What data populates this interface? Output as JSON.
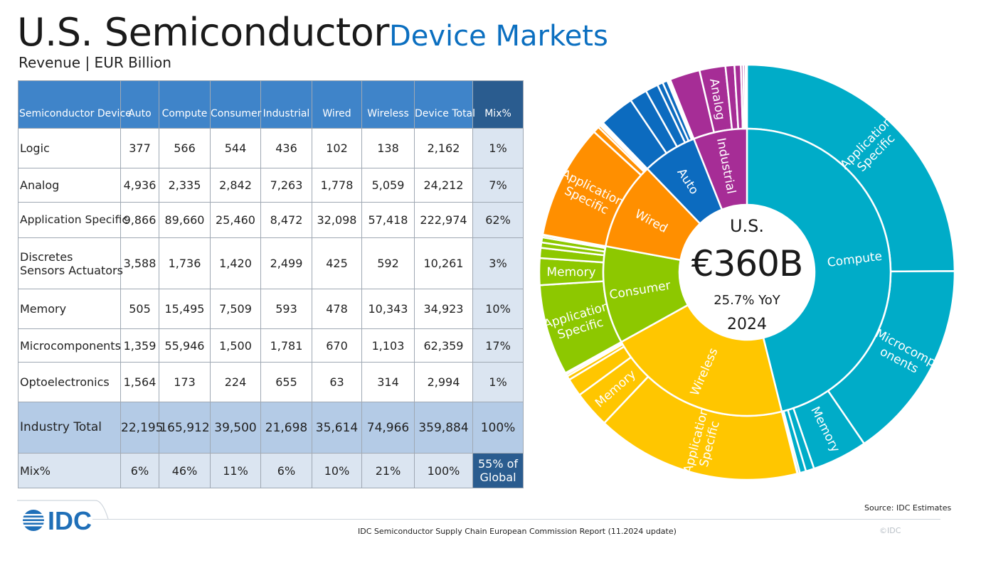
{
  "title_main": "U.S. Semiconductor",
  "title_accent": "Device Markets",
  "subtitle": "Revenue | EUR Billion",
  "table": {
    "headers": [
      "Semiconductor Device",
      "Auto",
      "Compute",
      "Consumer",
      "Industrial",
      "Wired",
      "Wireless",
      "Device Total",
      "Mix%"
    ],
    "rows": [
      {
        "label": "Logic",
        "values": [
          "377",
          "566",
          "544",
          "436",
          "102",
          "138",
          "2,162"
        ],
        "mix": "1%"
      },
      {
        "label": "Analog",
        "values": [
          "4,936",
          "2,335",
          "2,842",
          "7,263",
          "1,778",
          "5,059",
          "24,212"
        ],
        "mix": "7%"
      },
      {
        "label": "Application Specific",
        "values": [
          "9,866",
          "89,660",
          "25,460",
          "8,472",
          "32,098",
          "57,418",
          "222,974"
        ],
        "mix": "62%"
      },
      {
        "label": "Discretes Sensors Actuators",
        "label_l1": "Discretes",
        "label_l2": "Sensors Actuators",
        "values": [
          "3,588",
          "1,736",
          "1,420",
          "2,499",
          "425",
          "592",
          "10,261"
        ],
        "mix": "3%"
      },
      {
        "label": "Memory",
        "values": [
          "505",
          "15,495",
          "7,509",
          "593",
          "478",
          "10,343",
          "34,923"
        ],
        "mix": "10%"
      },
      {
        "label": "Microcomponents",
        "values": [
          "1,359",
          "55,946",
          "1,500",
          "1,781",
          "670",
          "1,103",
          "62,359"
        ],
        "mix": "17%"
      },
      {
        "label": "Optoelectronics",
        "values": [
          "1,564",
          "173",
          "224",
          "655",
          "63",
          "314",
          "2,994"
        ],
        "mix": "1%"
      }
    ],
    "total_row": {
      "label": "Industry Total",
      "values": [
        "22,195",
        "165,912",
        "39,500",
        "21,698",
        "35,614",
        "74,966",
        "359,884"
      ],
      "mix": "100%"
    },
    "mix_row": {
      "label": "Mix%",
      "values": [
        "6%",
        "46%",
        "11%",
        "6%",
        "10%",
        "21%",
        "100%"
      ],
      "global_l1": "55% of",
      "global_l2": "Global"
    }
  },
  "chart_data": {
    "type": "sunburst",
    "center": {
      "l1": "U.S.",
      "l2": "€360B",
      "l3": "25.7% YoY",
      "l4": "2024"
    },
    "unit": "EUR Million",
    "colors": {
      "Compute": "#00acc8",
      "Wireless": "#ffc600",
      "Consumer": "#8dc800",
      "Wired": "#ff8f00",
      "Auto": "#0c6bbf",
      "Industrial": "#a62d96"
    },
    "inner": [
      {
        "name": "Compute",
        "value": 165912
      },
      {
        "name": "Wireless",
        "value": 74966
      },
      {
        "name": "Consumer",
        "value": 39500
      },
      {
        "name": "Wired",
        "value": 35614
      },
      {
        "name": "Auto",
        "value": 22195
      },
      {
        "name": "Industrial",
        "value": 21698
      }
    ],
    "outer": [
      {
        "parent": "Compute",
        "name": "Application Specific",
        "value": 89660
      },
      {
        "parent": "Compute",
        "name": "Microcomponents",
        "value": 55946
      },
      {
        "parent": "Compute",
        "name": "Memory",
        "value": 15495
      },
      {
        "parent": "Compute",
        "name": "Analog",
        "value": 2335
      },
      {
        "parent": "Compute",
        "name": "Discretes Sensors Actuators",
        "value": 1736
      },
      {
        "parent": "Compute",
        "name": "Logic",
        "value": 566
      },
      {
        "parent": "Compute",
        "name": "Optoelectronics",
        "value": 173
      },
      {
        "parent": "Wireless",
        "name": "Application Specific",
        "value": 57418
      },
      {
        "parent": "Wireless",
        "name": "Memory",
        "value": 10343
      },
      {
        "parent": "Wireless",
        "name": "Analog",
        "value": 5059
      },
      {
        "parent": "Wireless",
        "name": "Microcomponents",
        "value": 1103
      },
      {
        "parent": "Wireless",
        "name": "Discretes Sensors Actuators",
        "value": 592
      },
      {
        "parent": "Wireless",
        "name": "Optoelectronics",
        "value": 314
      },
      {
        "parent": "Wireless",
        "name": "Logic",
        "value": 138
      },
      {
        "parent": "Consumer",
        "name": "Application Specific",
        "value": 25460
      },
      {
        "parent": "Consumer",
        "name": "Memory",
        "value": 7509
      },
      {
        "parent": "Consumer",
        "name": "Analog",
        "value": 2842
      },
      {
        "parent": "Consumer",
        "name": "Microcomponents",
        "value": 1500
      },
      {
        "parent": "Consumer",
        "name": "Discretes Sensors Actuators",
        "value": 1420
      },
      {
        "parent": "Consumer",
        "name": "Logic",
        "value": 544
      },
      {
        "parent": "Consumer",
        "name": "Optoelectronics",
        "value": 224
      },
      {
        "parent": "Wired",
        "name": "Application Specific",
        "value": 32098
      },
      {
        "parent": "Wired",
        "name": "Analog",
        "value": 1778
      },
      {
        "parent": "Wired",
        "name": "Microcomponents",
        "value": 670
      },
      {
        "parent": "Wired",
        "name": "Memory",
        "value": 478
      },
      {
        "parent": "Wired",
        "name": "Discretes Sensors Actuators",
        "value": 425
      },
      {
        "parent": "Wired",
        "name": "Logic",
        "value": 102
      },
      {
        "parent": "Wired",
        "name": "Optoelectronics",
        "value": 63
      },
      {
        "parent": "Auto",
        "name": "Application Specific",
        "value": 9866
      },
      {
        "parent": "Auto",
        "name": "Analog",
        "value": 4936
      },
      {
        "parent": "Auto",
        "name": "Discretes Sensors Actuators",
        "value": 3588
      },
      {
        "parent": "Auto",
        "name": "Optoelectronics",
        "value": 1564
      },
      {
        "parent": "Auto",
        "name": "Microcomponents",
        "value": 1359
      },
      {
        "parent": "Auto",
        "name": "Memory",
        "value": 505
      },
      {
        "parent": "Auto",
        "name": "Logic",
        "value": 377
      },
      {
        "parent": "Industrial",
        "name": "Application Specific",
        "value": 8472
      },
      {
        "parent": "Industrial",
        "name": "Analog",
        "value": 7263
      },
      {
        "parent": "Industrial",
        "name": "Discretes Sensors Actuators",
        "value": 2499
      },
      {
        "parent": "Industrial",
        "name": "Microcomponents",
        "value": 1781
      },
      {
        "parent": "Industrial",
        "name": "Optoelectronics",
        "value": 655
      },
      {
        "parent": "Industrial",
        "name": "Memory",
        "value": 593
      },
      {
        "parent": "Industrial",
        "name": "Logic",
        "value": 436
      }
    ],
    "outer_labels": [
      {
        "parent": "Compute",
        "name": "Application Specific",
        "l1": "Application",
        "l2": "Specific"
      },
      {
        "parent": "Compute",
        "name": "Microcomponents",
        "l1": "Microcomp",
        "l2": "onents"
      },
      {
        "parent": "Compute",
        "name": "Memory",
        "l1": "Memory"
      },
      {
        "parent": "Wireless",
        "name": "Application Specific",
        "l1": "Application",
        "l2": "Specific"
      },
      {
        "parent": "Wireless",
        "name": "Memory",
        "l1": "Memory"
      },
      {
        "parent": "Consumer",
        "name": "Application Specific",
        "l1": "Application",
        "l2": "Specific"
      },
      {
        "parent": "Consumer",
        "name": "Memory",
        "l1": "Memory"
      },
      {
        "parent": "Wired",
        "name": "Application Specific",
        "l1": "Application",
        "l2": "Specific"
      },
      {
        "parent": "Industrial",
        "name": "Analog",
        "l1": "Analog"
      }
    ]
  },
  "footer": {
    "source": "Source: IDC Estimates",
    "report": "IDC Semiconductor Supply Chain European Commission Report (11.2024 update)",
    "copyright": "©IDC",
    "logo_text": "IDC"
  }
}
